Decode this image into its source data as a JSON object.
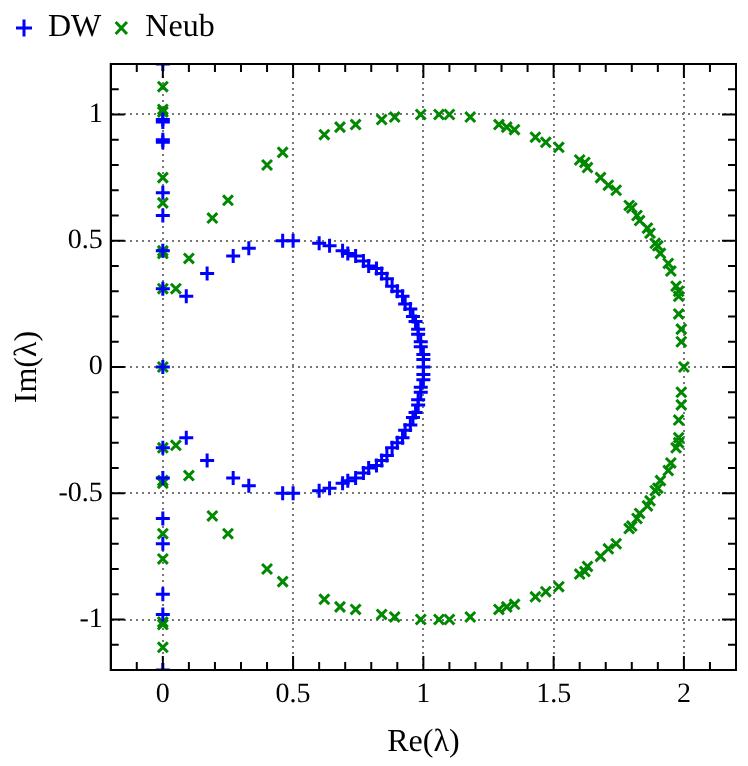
{
  "chart_data": {
    "type": "scatter",
    "xlabel": "Re(λ)",
    "ylabel": "Im(λ)",
    "legend": "top left",
    "grid": true,
    "xlim": [
      -0.2,
      2.2
    ],
    "ylim": [
      -1.2,
      1.2
    ],
    "xticks": [
      {
        "value": -0.1,
        "label": null
      },
      0,
      {
        "value": 0.1,
        "label": null
      },
      {
        "value": 0.2,
        "label": null
      },
      {
        "value": 0.3,
        "label": null
      },
      {
        "value": 0.4,
        "label": null
      },
      0.5,
      {
        "value": 0.6,
        "label": null
      },
      {
        "value": 0.7,
        "label": null
      },
      {
        "value": 0.8,
        "label": null
      },
      {
        "value": 0.9,
        "label": null
      },
      1,
      {
        "value": 1.1,
        "label": null
      },
      {
        "value": 1.2,
        "label": null
      },
      {
        "value": 1.3,
        "label": null
      },
      {
        "value": 1.4,
        "label": null
      },
      1.5,
      {
        "value": 1.6,
        "label": null
      },
      {
        "value": 1.7,
        "label": null
      },
      {
        "value": 1.8,
        "label": null
      },
      {
        "value": 1.9,
        "label": null
      },
      2,
      {
        "value": 2.1,
        "label": null
      }
    ],
    "yticks": [
      {
        "value": -1.1,
        "label": null
      },
      -1,
      {
        "value": -0.9,
        "label": null
      },
      {
        "value": -0.8,
        "label": null
      },
      {
        "value": -0.7,
        "label": null
      },
      {
        "value": -0.6,
        "label": null
      },
      -0.5,
      {
        "value": -0.4,
        "label": null
      },
      {
        "value": -0.3,
        "label": null
      },
      {
        "value": -0.2,
        "label": null
      },
      {
        "value": -0.1,
        "label": null
      },
      0,
      {
        "value": 0.1,
        "label": null
      },
      {
        "value": 0.2,
        "label": null
      },
      {
        "value": 0.3,
        "label": null
      },
      {
        "value": 0.4,
        "label": null
      },
      0.5,
      {
        "value": 0.6,
        "label": null
      },
      {
        "value": 0.7,
        "label": null
      },
      {
        "value": 0.8,
        "label": null
      },
      {
        "value": 0.9,
        "label": null
      },
      1,
      {
        "value": 1.1,
        "label": null
      }
    ],
    "series": [
      {
        "name": "DW",
        "color": "#0000ff",
        "marker": "plus",
        "x": [
          0,
          0,
          0,
          0,
          0,
          0,
          0,
          0,
          0,
          0,
          0,
          0,
          0,
          0,
          0,
          0,
          0,
          0.09,
          0.17,
          0.27,
          0.33,
          0.46,
          0.5,
          0.6,
          0.64,
          0.69,
          0.71,
          0.74,
          0.77,
          0.79,
          0.82,
          0.84,
          0.86,
          0.88,
          0.9,
          0.92,
          0.93,
          0.95,
          0.96,
          0.97,
          0.98,
          0.98,
          0.99,
          0.99,
          1,
          1,
          1,
          0.09,
          0.17,
          0.27,
          0.33,
          0.46,
          0.5,
          0.6,
          0.64,
          0.69,
          0.71,
          0.74,
          0.77,
          0.79,
          0.82,
          0.84,
          0.86,
          0.88,
          0.9,
          0.92,
          0.93,
          0.95,
          0.96,
          0.97,
          0.98,
          0.98,
          0.99,
          0.99,
          1,
          1
        ],
        "values": [
          1.2,
          0.98,
          0.97,
          0.9,
          0.89,
          0.69,
          0.6,
          0.46,
          0.31,
          0,
          -0.32,
          -0.44,
          -0.6,
          -0.7,
          -0.9,
          -0.98,
          -1.2,
          0.28,
          0.37,
          0.44,
          0.47,
          0.5,
          0.5,
          0.49,
          0.48,
          0.46,
          0.45,
          0.44,
          0.42,
          0.4,
          0.39,
          0.37,
          0.35,
          0.32,
          0.3,
          0.28,
          0.25,
          0.23,
          0.2,
          0.18,
          0.15,
          0.13,
          0.1,
          0.08,
          0.05,
          0.03,
          0,
          -0.28,
          -0.37,
          -0.44,
          -0.47,
          -0.5,
          -0.5,
          -0.49,
          -0.48,
          -0.46,
          -0.45,
          -0.44,
          -0.42,
          -0.4,
          -0.39,
          -0.37,
          -0.35,
          -0.32,
          -0.3,
          -0.28,
          -0.25,
          -0.23,
          -0.2,
          -0.18,
          -0.15,
          -0.13,
          -0.1,
          -0.08,
          -0.05,
          -0.03
        ]
      },
      {
        "name": "Neub",
        "color": "#008800",
        "marker": "cross",
        "x": [
          0,
          0,
          0,
          0,
          0,
          0,
          0,
          0,
          0,
          0,
          0,
          0,
          0,
          0,
          0,
          0,
          0,
          0.05,
          0.1,
          0.19,
          0.25,
          0.4,
          0.46,
          0.62,
          0.68,
          0.74,
          0.84,
          0.89,
          0.99,
          1.06,
          1.1,
          1.18,
          1.29,
          1.32,
          1.35,
          1.43,
          1.47,
          1.52,
          1.6,
          1.62,
          1.63,
          1.68,
          1.71,
          1.74,
          1.79,
          1.8,
          1.82,
          1.83,
          1.86,
          1.87,
          1.89,
          1.9,
          1.91,
          1.94,
          1.95,
          1.97,
          1.98,
          1.98,
          1.98,
          1.99,
          1.99,
          2,
          0.05,
          0.1,
          0.19,
          0.25,
          0.4,
          0.46,
          0.62,
          0.68,
          0.74,
          0.84,
          0.89,
          0.99,
          1.06,
          1.1,
          1.18,
          1.29,
          1.32,
          1.35,
          1.43,
          1.47,
          1.52,
          1.6,
          1.62,
          1.63,
          1.68,
          1.71,
          1.74,
          1.79,
          1.8,
          1.82,
          1.83,
          1.86,
          1.87,
          1.89,
          1.9,
          1.91,
          1.94,
          1.95,
          1.97,
          1.98,
          1.98,
          1.98,
          1.99,
          1.99
        ],
        "values": [
          1.11,
          1.02,
          1.01,
          0.75,
          0.65,
          0.46,
          0.45,
          0.31,
          0,
          -0.32,
          -0.45,
          -0.46,
          -0.66,
          -0.76,
          -1.01,
          -1.02,
          -1.11,
          0.31,
          0.43,
          0.59,
          0.66,
          0.8,
          0.85,
          0.92,
          0.95,
          0.96,
          0.98,
          0.99,
          1,
          1,
          1,
          0.99,
          0.96,
          0.95,
          0.94,
          0.91,
          0.89,
          0.87,
          0.82,
          0.81,
          0.79,
          0.75,
          0.72,
          0.7,
          0.64,
          0.63,
          0.6,
          0.58,
          0.55,
          0.53,
          0.49,
          0.48,
          0.45,
          0.41,
          0.38,
          0.32,
          0.3,
          0.28,
          0.21,
          0.15,
          0.1,
          0,
          -0.31,
          -0.43,
          -0.59,
          -0.66,
          -0.8,
          -0.85,
          -0.92,
          -0.95,
          -0.96,
          -0.98,
          -0.99,
          -1,
          -1,
          -1,
          -0.99,
          -0.96,
          -0.95,
          -0.94,
          -0.91,
          -0.89,
          -0.87,
          -0.82,
          -0.81,
          -0.79,
          -0.75,
          -0.72,
          -0.7,
          -0.64,
          -0.63,
          -0.6,
          -0.58,
          -0.55,
          -0.53,
          -0.49,
          -0.48,
          -0.45,
          -0.41,
          -0.38,
          -0.32,
          -0.3,
          -0.28,
          -0.21,
          -0.15,
          -0.1
        ]
      }
    ]
  }
}
